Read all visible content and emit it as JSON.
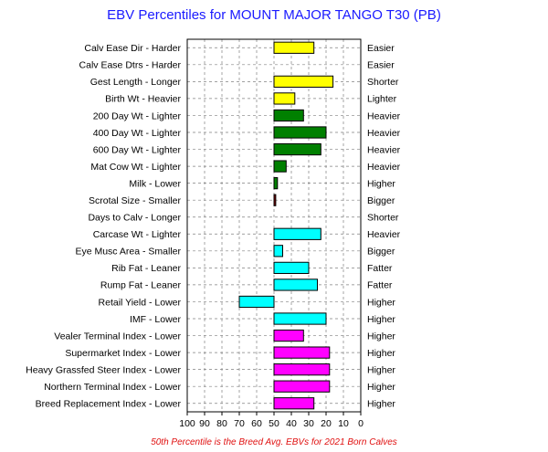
{
  "chart_data": {
    "type": "bar",
    "title": "EBV Percentiles for MOUNT MAJOR TANGO T30 (PB)",
    "footnote": "50th Percentile is the Breed Avg. EBVs for 2021 Born Calves",
    "xlim": [
      100,
      0
    ],
    "x_reversed": true,
    "baseline": 50,
    "xticks": [
      "100",
      "90",
      "80",
      "70",
      "60",
      "50",
      "40",
      "30",
      "20",
      "10",
      "0"
    ],
    "grid": true,
    "categories": [
      {
        "left": "Calv Ease Dir - Harder",
        "right": "Easier",
        "value": 27,
        "color": "#ffff00"
      },
      {
        "left": "Calv Ease Dtrs - Harder",
        "right": "Easier",
        "value": null,
        "color": "#ffff00"
      },
      {
        "left": "Gest Length - Longer",
        "right": "Shorter",
        "value": 16,
        "color": "#ffff00"
      },
      {
        "left": "Birth Wt - Heavier",
        "right": "Lighter",
        "value": 38,
        "color": "#ffff00"
      },
      {
        "left": "200 Day Wt - Lighter",
        "right": "Heavier",
        "value": 33,
        "color": "#008000"
      },
      {
        "left": "400 Day Wt - Lighter",
        "right": "Heavier",
        "value": 20,
        "color": "#008000"
      },
      {
        "left": "600 Day Wt - Lighter",
        "right": "Heavier",
        "value": 23,
        "color": "#008000"
      },
      {
        "left": "Mat Cow Wt - Lighter",
        "right": "Heavier",
        "value": 43,
        "color": "#008000"
      },
      {
        "left": "Milk - Lower",
        "right": "Higher",
        "value": 48,
        "color": "#008000"
      },
      {
        "left": "Scrotal Size - Smaller",
        "right": "Bigger",
        "value": 49,
        "color": "#800000"
      },
      {
        "left": "Days to Calv - Longer",
        "right": "Shorter",
        "value": null,
        "color": "#800000"
      },
      {
        "left": "Carcase Wt - Lighter",
        "right": "Heavier",
        "value": 23,
        "color": "#00ffff"
      },
      {
        "left": "Eye Musc Area - Smaller",
        "right": "Bigger",
        "value": 45,
        "color": "#00ffff"
      },
      {
        "left": "Rib Fat - Leaner",
        "right": "Fatter",
        "value": 30,
        "color": "#00ffff"
      },
      {
        "left": "Rump Fat - Leaner",
        "right": "Fatter",
        "value": 25,
        "color": "#00ffff"
      },
      {
        "left": "Retail Yield - Lower",
        "right": "Higher",
        "value": 70,
        "color": "#00ffff"
      },
      {
        "left": "IMF - Lower",
        "right": "Higher",
        "value": 20,
        "color": "#00ffff"
      },
      {
        "left": "Vealer Terminal Index - Lower",
        "right": "Higher",
        "value": 33,
        "color": "#ff00ff"
      },
      {
        "left": "Supermarket Index - Lower",
        "right": "Higher",
        "value": 18,
        "color": "#ff00ff"
      },
      {
        "left": "Heavy Grassfed Steer Index - Lower",
        "right": "Higher",
        "value": 18,
        "color": "#ff00ff"
      },
      {
        "left": "Northern Terminal Index - Lower",
        "right": "Higher",
        "value": 18,
        "color": "#ff00ff"
      },
      {
        "left": "Breed Replacement Index - Lower",
        "right": "Higher",
        "value": 27,
        "color": "#ff00ff"
      }
    ]
  }
}
